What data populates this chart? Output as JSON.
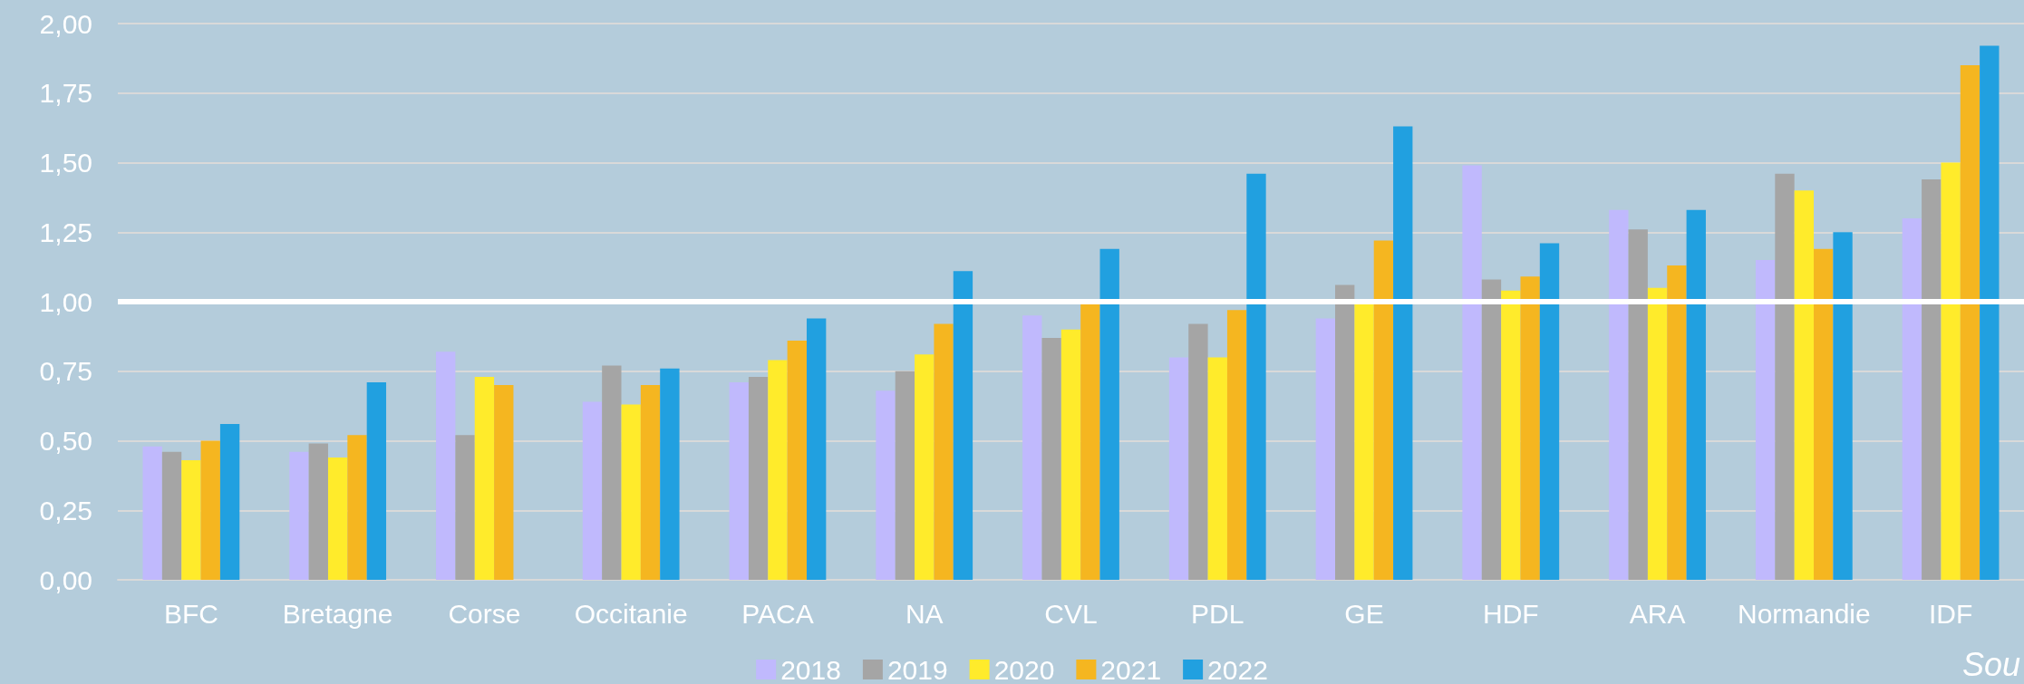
{
  "chart_data": {
    "type": "bar",
    "categories": [
      "BFC",
      "Bretagne",
      "Corse",
      "Occitanie",
      "PACA",
      "NA",
      "CVL",
      "PDL",
      "GE",
      "HDF",
      "ARA",
      "Normandie",
      "IDF"
    ],
    "series": [
      {
        "name": "2018",
        "color": "#c0b9fd",
        "values": [
          0.48,
          0.46,
          0.82,
          0.64,
          0.71,
          0.68,
          0.95,
          0.8,
          0.94,
          1.49,
          1.33,
          1.15,
          1.3
        ]
      },
      {
        "name": "2019",
        "color": "#a5a5a5",
        "values": [
          0.46,
          0.49,
          0.52,
          0.77,
          0.73,
          0.75,
          0.87,
          0.92,
          1.06,
          1.08,
          1.26,
          1.46,
          1.44
        ]
      },
      {
        "name": "2020",
        "color": "#ffeb2b",
        "values": [
          0.43,
          0.44,
          0.73,
          0.63,
          0.79,
          0.81,
          0.9,
          0.8,
          1.0,
          1.04,
          1.05,
          1.4,
          1.5
        ]
      },
      {
        "name": "2021",
        "color": "#f5b620",
        "values": [
          0.5,
          0.52,
          0.7,
          0.7,
          0.86,
          0.92,
          0.99,
          0.97,
          1.22,
          1.09,
          1.13,
          1.19,
          1.85
        ]
      },
      {
        "name": "2022",
        "color": "#21a0e0",
        "values": [
          0.56,
          0.71,
          null,
          0.76,
          0.94,
          1.11,
          1.19,
          1.46,
          1.63,
          1.21,
          1.33,
          1.25,
          1.92
        ]
      }
    ],
    "ylim": [
      0,
      2
    ],
    "yticks": [
      {
        "value": 0,
        "label": "0,00"
      },
      {
        "value": 0.25,
        "label": "0,25"
      },
      {
        "value": 0.5,
        "label": "0,50"
      },
      {
        "value": 0.75,
        "label": "0,75"
      },
      {
        "value": 1,
        "label": "1,00"
      },
      {
        "value": 1.25,
        "label": "1,25"
      },
      {
        "value": 1.5,
        "label": "1,50"
      },
      {
        "value": 1.75,
        "label": "1,75"
      },
      {
        "value": 2,
        "label": "2,00"
      }
    ],
    "grid": "y",
    "legend": "bottom",
    "ref_lines": [
      {
        "axis": "y",
        "value": 1,
        "color": "#ffffff"
      }
    ],
    "annotations": [
      "Sou"
    ]
  }
}
